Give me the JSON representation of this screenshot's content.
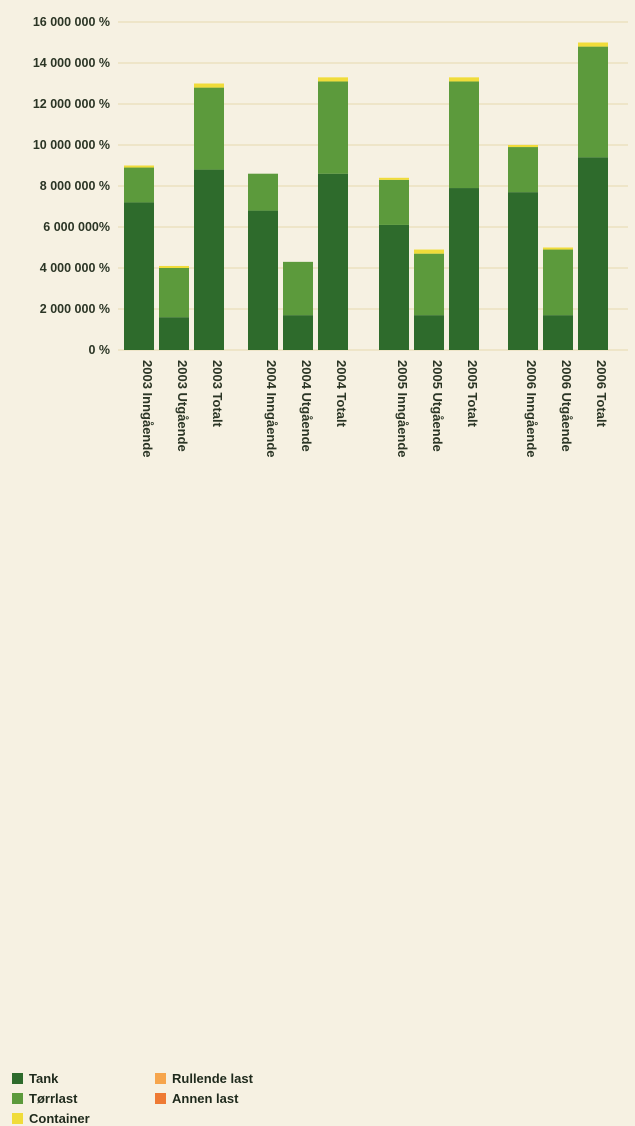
{
  "chart_data": {
    "type": "bar",
    "stacked": true,
    "categories": [
      "2003 Inngående",
      "2003 Utgående",
      "2003 Totalt",
      "2004 Inngående",
      "2004 Utgående",
      "2004 Totalt",
      "2005 Inngående",
      "2005 Utgående",
      "2005 Totalt",
      "2006 Inngående",
      "2006 Utgående",
      "2006 Totalt"
    ],
    "series": [
      {
        "name": "Tank",
        "color": "#2e6b2c",
        "values": [
          7200000,
          1600000,
          8800000,
          6800000,
          1700000,
          8600000,
          6100000,
          1700000,
          7900000,
          7700000,
          1700000,
          9400000
        ]
      },
      {
        "name": "Tørrlast",
        "color": "#5c9a3c",
        "values": [
          1700000,
          2400000,
          4000000,
          1800000,
          2600000,
          4500000,
          2200000,
          3000000,
          5200000,
          2200000,
          3200000,
          5400000
        ]
      },
      {
        "name": "Container",
        "color": "#f0dc3a",
        "values": [
          100000,
          100000,
          200000,
          0,
          0,
          200000,
          100000,
          200000,
          200000,
          100000,
          100000,
          200000
        ]
      },
      {
        "name": "Rullende last",
        "color": "#f6a54c",
        "values": [
          0,
          0,
          0,
          0,
          0,
          0,
          0,
          0,
          0,
          0,
          0,
          0
        ]
      },
      {
        "name": "Annen last",
        "color": "#ee7a33",
        "values": [
          0,
          0,
          0,
          0,
          0,
          0,
          0,
          0,
          0,
          0,
          0,
          0
        ]
      }
    ],
    "yticks": [
      "16 000 000 %",
      "14 000 000 %",
      "12 000 000 %",
      "10 000 000 %",
      "8 000 000 %",
      "6 000 000%",
      "4 000 000 %",
      "2 000 000 %",
      "0 %"
    ],
    "ylim": [
      0,
      16000000
    ],
    "grid": true,
    "legend_position": "bottom-left"
  },
  "legend": {
    "tank": "Tank",
    "torrlast": "Tørrlast",
    "container": "Container",
    "rullende": "Rullende last",
    "annen": "Annen last"
  },
  "colors": {
    "tank": "#2e6b2c",
    "torrlast": "#5c9a3c",
    "container": "#f0dc3a",
    "rullende": "#f6a54c",
    "annen": "#ee7a33",
    "grid": "#e7d9ad",
    "axis_text": "#2b3525"
  }
}
